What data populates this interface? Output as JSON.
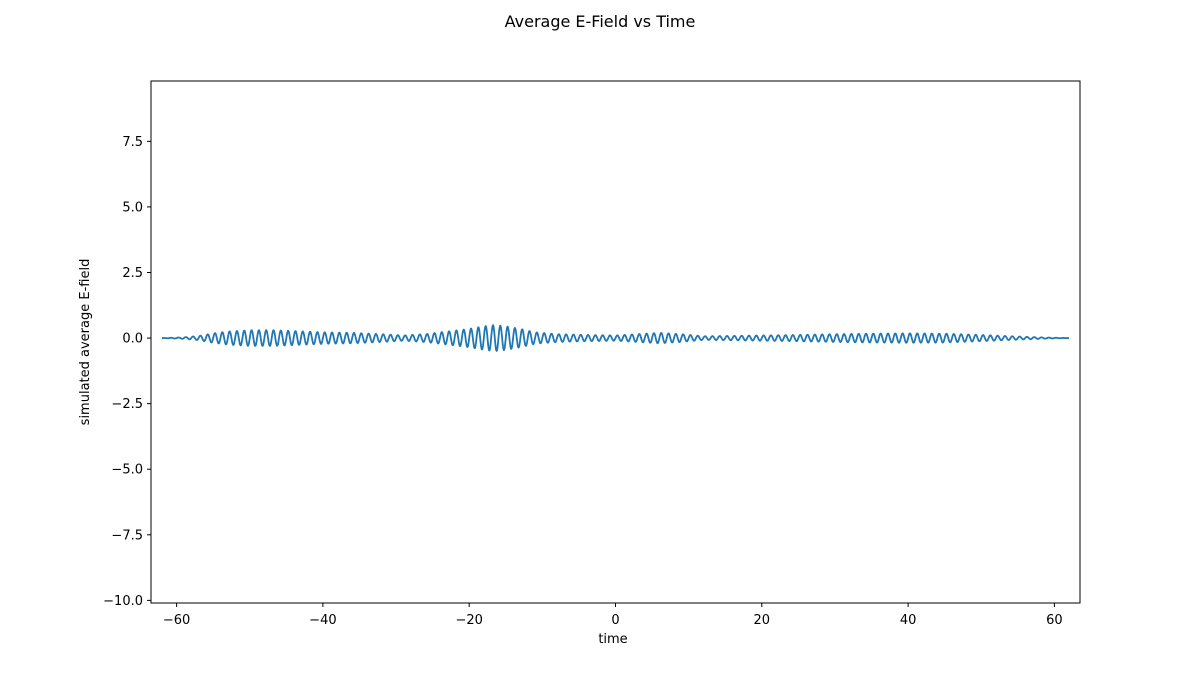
{
  "chart_data": {
    "type": "line",
    "title": "Average E-Field vs Time",
    "xlabel": "time",
    "ylabel": "simulated average E-field",
    "xlim": [
      -63.5,
      63.5
    ],
    "ylim": [
      -10.1,
      9.8
    ],
    "xticks": [
      -60,
      -40,
      -20,
      0,
      20,
      40,
      60
    ],
    "xtick_labels": [
      "−60",
      "−40",
      "−20",
      "0",
      "20",
      "40",
      "60"
    ],
    "yticks": [
      7.5,
      5.0,
      2.5,
      0.0,
      -2.5,
      -5.0,
      -7.5,
      -10.0
    ],
    "ytick_labels": [
      "7.5",
      "5.0",
      "2.5",
      "0.0",
      "−2.5",
      "−5.0",
      "−7.5",
      "−10.0"
    ],
    "grid": false,
    "legend": "none",
    "line_color": "#1f77b4",
    "series": [
      {
        "x_range": [
          -62,
          62
        ],
        "oscillation_period": 1.0,
        "envelope_points": [
          [
            -62,
            0.0
          ],
          [
            -59,
            0.03
          ],
          [
            -57,
            0.08
          ],
          [
            -55,
            0.18
          ],
          [
            -53,
            0.25
          ],
          [
            -50,
            0.3
          ],
          [
            -47,
            0.3
          ],
          [
            -44,
            0.27
          ],
          [
            -40,
            0.22
          ],
          [
            -36,
            0.2
          ],
          [
            -32,
            0.15
          ],
          [
            -29,
            0.1
          ],
          [
            -26,
            0.15
          ],
          [
            -23,
            0.25
          ],
          [
            -20,
            0.35
          ],
          [
            -18,
            0.45
          ],
          [
            -16.5,
            0.5
          ],
          [
            -15,
            0.45
          ],
          [
            -13,
            0.35
          ],
          [
            -11,
            0.22
          ],
          [
            -8,
            0.15
          ],
          [
            -4,
            0.12
          ],
          [
            0,
            0.1
          ],
          [
            3,
            0.15
          ],
          [
            6,
            0.2
          ],
          [
            9,
            0.15
          ],
          [
            12,
            0.07
          ],
          [
            15,
            0.08
          ],
          [
            20,
            0.1
          ],
          [
            25,
            0.12
          ],
          [
            30,
            0.15
          ],
          [
            35,
            0.17
          ],
          [
            40,
            0.18
          ],
          [
            45,
            0.17
          ],
          [
            50,
            0.12
          ],
          [
            55,
            0.06
          ],
          [
            59,
            0.02
          ],
          [
            62,
            0.0
          ]
        ]
      }
    ]
  }
}
